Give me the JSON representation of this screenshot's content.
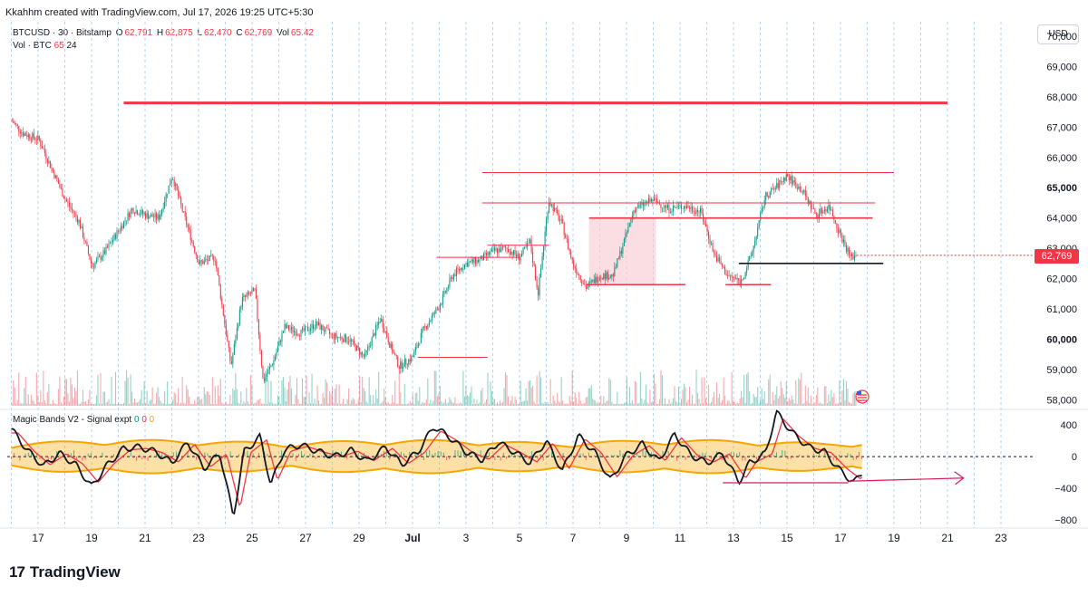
{
  "header": {
    "credit": "Kkahhm created with TradingView.com, Jul 17, 2026 19:25 UTC+5:30"
  },
  "legend": {
    "symbol": "BTCUSD · 30 · Bitstamp",
    "o_label": "O",
    "o_value": "62,791",
    "h_label": "H",
    "h_value": "62,875",
    "l_label": "L",
    "l_value": "62,470",
    "c_label": "C",
    "c_value": "62,769",
    "vol_label": "Vol",
    "vol_value": "65.42",
    "vol_line_name": "Vol · BTC",
    "vol_line_v1": "65",
    "vol_line_v2": "24"
  },
  "indicator": {
    "name": "Magic Bands V2 - Signal expt",
    "v1": "0",
    "v2": "0",
    "v3": "0"
  },
  "currency_button": "USD",
  "last_price_tag": "62,769",
  "brand": {
    "logo": "17",
    "name": "TradingView"
  },
  "colors": {
    "up": "#089981",
    "down": "#f23645",
    "level": "#f23645",
    "band": "#f7a600",
    "grid": "#e0e3eb"
  },
  "chart_data": [
    {
      "type": "candlestick",
      "title": "BTCUSD · 30 · Bitstamp",
      "y_axis_ticks": [
        "58,000",
        "59,000",
        "60,000",
        "61,000",
        "62,000",
        "63,000",
        "64,000",
        "65,000",
        "66,000",
        "67,000",
        "68,000",
        "69,000",
        "70,000"
      ],
      "y_axis_bold": [
        "60,000",
        "65,000"
      ],
      "x_axis_ticks": [
        "17",
        "19",
        "21",
        "23",
        "25",
        "27",
        "29",
        "Jul",
        "3",
        "5",
        "7",
        "9",
        "11",
        "13",
        "15",
        "17",
        "19",
        "21",
        "23"
      ],
      "ylim": [
        57800,
        70300
      ],
      "price_path": [
        [
          0,
          67200
        ],
        [
          0.4,
          66800
        ],
        [
          1,
          66600
        ],
        [
          1.5,
          65600
        ],
        [
          2,
          64600
        ],
        [
          2.5,
          63900
        ],
        [
          3,
          62400
        ],
        [
          3.5,
          62900
        ],
        [
          4,
          63600
        ],
        [
          4.5,
          64300
        ],
        [
          5,
          64100
        ],
        [
          5.5,
          64000
        ],
        [
          6,
          65400
        ],
        [
          6.4,
          64200
        ],
        [
          7,
          62500
        ],
        [
          7.6,
          62700
        ],
        [
          8.2,
          59100
        ],
        [
          8.6,
          61300
        ],
        [
          9.1,
          61600
        ],
        [
          9.4,
          58600
        ],
        [
          9.8,
          59300
        ],
        [
          10.2,
          60400
        ],
        [
          10.8,
          60200
        ],
        [
          11.4,
          60500
        ],
        [
          12,
          60100
        ],
        [
          12.6,
          60000
        ],
        [
          13.2,
          59400
        ],
        [
          13.8,
          60700
        ],
        [
          14.2,
          59700
        ],
        [
          14.5,
          59100
        ],
        [
          15,
          59400
        ],
        [
          15.4,
          60300
        ],
        [
          16,
          61100
        ],
        [
          16.5,
          62100
        ],
        [
          17,
          62500
        ],
        [
          17.5,
          62600
        ],
        [
          18,
          62900
        ],
        [
          18.5,
          63000
        ],
        [
          19,
          62700
        ],
        [
          19.4,
          63200
        ],
        [
          19.7,
          61500
        ],
        [
          20.1,
          64600
        ],
        [
          20.6,
          63800
        ],
        [
          21,
          62500
        ],
        [
          21.5,
          61700
        ],
        [
          22,
          62100
        ],
        [
          22.5,
          62100
        ],
        [
          22.8,
          62900
        ],
        [
          23.3,
          64300
        ],
        [
          24,
          64600
        ],
        [
          24.6,
          64300
        ],
        [
          25.2,
          64400
        ],
        [
          25.8,
          64200
        ],
        [
          26.3,
          62800
        ],
        [
          26.8,
          62100
        ],
        [
          27.3,
          61900
        ],
        [
          27.7,
          62800
        ],
        [
          28.2,
          64700
        ],
        [
          28.6,
          65000
        ],
        [
          29,
          65400
        ],
        [
          29.6,
          64900
        ],
        [
          30.1,
          64100
        ],
        [
          30.6,
          64400
        ],
        [
          31,
          63500
        ],
        [
          31.4,
          62700
        ],
        [
          31.6,
          62769
        ]
      ],
      "horizontal_levels": [
        {
          "y": 67800,
          "x_from": 4.2,
          "x_to": 35.0,
          "width": "thick"
        },
        {
          "y": 65500,
          "x_from": 17.6,
          "x_to": 33.0,
          "width": "thin"
        },
        {
          "y": 64500,
          "x_from": 17.6,
          "x_to": 32.3,
          "width": "thin"
        },
        {
          "y": 64000,
          "x_from": 21.6,
          "x_to": 32.2,
          "width": "medium"
        },
        {
          "y": 63100,
          "x_from": 17.8,
          "x_to": 20.1,
          "width": "thin"
        },
        {
          "y": 62700,
          "x_from": 15.9,
          "x_to": 19.0,
          "width": "thin"
        },
        {
          "y": 61800,
          "x_from": 21.5,
          "x_to": 25.2,
          "width": "medium"
        },
        {
          "y": 61800,
          "x_from": 26.7,
          "x_to": 28.4,
          "width": "medium"
        },
        {
          "y": 62500,
          "x_from": 27.2,
          "x_to": 32.6,
          "width": "medium",
          "color": "black"
        },
        {
          "y": 59400,
          "x_from": 15.2,
          "x_to": 17.8,
          "width": "thin"
        }
      ],
      "zone": {
        "x_from": 21.6,
        "x_to": 24.1,
        "y_from": 61800,
        "y_to": 64000
      },
      "last_price": 62769
    },
    {
      "type": "area",
      "title": "Magic Bands V2 - Signal expt",
      "y_axis_ticks": [
        "400",
        "0",
        "−400",
        "−800"
      ],
      "ylim": [
        -900,
        560
      ],
      "oscillator_path": [
        [
          0,
          350
        ],
        [
          0.6,
          80
        ],
        [
          1.2,
          -120
        ],
        [
          1.8,
          40
        ],
        [
          2.4,
          -100
        ],
        [
          3,
          -380
        ],
        [
          3.6,
          -100
        ],
        [
          4.2,
          100
        ],
        [
          4.8,
          120
        ],
        [
          5.4,
          60
        ],
        [
          6,
          -80
        ],
        [
          6.6,
          180
        ],
        [
          7.2,
          -150
        ],
        [
          7.8,
          40
        ],
        [
          8.3,
          -760
        ],
        [
          8.7,
          60
        ],
        [
          9.3,
          250
        ],
        [
          9.7,
          -350
        ],
        [
          10.2,
          80
        ],
        [
          10.8,
          150
        ],
        [
          11.5,
          60
        ],
        [
          12.1,
          0
        ],
        [
          12.7,
          80
        ],
        [
          13.3,
          -60
        ],
        [
          14,
          120
        ],
        [
          14.6,
          -100
        ],
        [
          15.2,
          60
        ],
        [
          15.8,
          380
        ],
        [
          16.4,
          240
        ],
        [
          17,
          60
        ],
        [
          17.6,
          -40
        ],
        [
          18.2,
          180
        ],
        [
          18.8,
          60
        ],
        [
          19.4,
          -80
        ],
        [
          20,
          200
        ],
        [
          20.6,
          -180
        ],
        [
          21.2,
          260
        ],
        [
          21.8,
          60
        ],
        [
          22.4,
          -300
        ],
        [
          23,
          20
        ],
        [
          23.6,
          160
        ],
        [
          24.2,
          -60
        ],
        [
          24.8,
          280
        ],
        [
          25.4,
          20
        ],
        [
          26,
          -80
        ],
        [
          26.6,
          40
        ],
        [
          27.2,
          -320
        ],
        [
          27.6,
          -80
        ],
        [
          28.2,
          40
        ],
        [
          28.6,
          560
        ],
        [
          29.2,
          300
        ],
        [
          29.8,
          120
        ],
        [
          30.4,
          60
        ],
        [
          31,
          -180
        ],
        [
          31.5,
          -330
        ],
        [
          31.8,
          -200
        ]
      ],
      "divergence_line": {
        "from": [
          26.6,
          -330
        ],
        "to": [
          31.3,
          -330
        ]
      },
      "arrow": {
        "from": [
          31.3,
          -310
        ],
        "to": [
          35.6,
          -270
        ]
      }
    }
  ]
}
